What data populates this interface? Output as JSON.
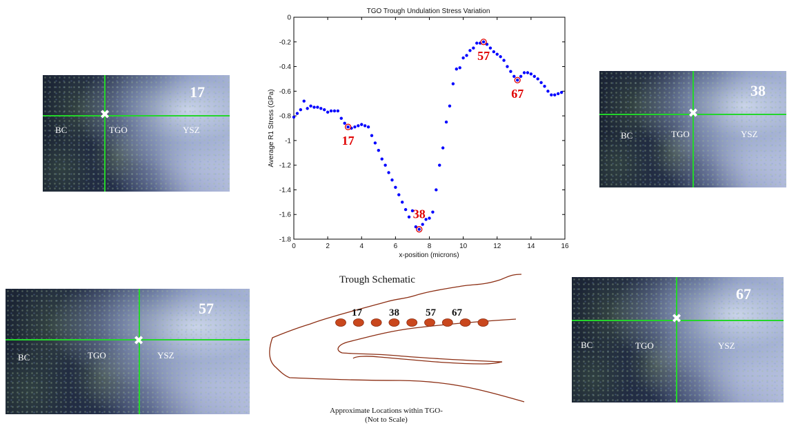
{
  "chart_data": {
    "type": "scatter",
    "title": "TGO Trough Undulation Stress Variation",
    "xlabel": "x-position (microns)",
    "ylabel": "Average R1 Stress (GPa)",
    "xlim": [
      0,
      16
    ],
    "ylim": [
      -1.8,
      0
    ],
    "xticks": [
      0,
      2,
      4,
      6,
      8,
      10,
      12,
      14,
      16
    ],
    "yticks": [
      0,
      -0.2,
      -0.4,
      -0.6,
      -0.8,
      -1,
      -1.2,
      -1.4,
      -1.6,
      -1.8
    ],
    "xtick_labels": [
      "0",
      "2",
      "4",
      "6",
      "8",
      "10",
      "12",
      "14",
      "16"
    ],
    "ytick_labels": [
      "0",
      "-0.2",
      "-0.4",
      "-0.6",
      "-0.8",
      "-1",
      "-1.2",
      "-1.4",
      "-1.6",
      "-1.8"
    ],
    "marker_color": "#0000ff",
    "highlight_color": "#e00000",
    "grid": false,
    "points": [
      [
        0.0,
        -0.81
      ],
      [
        0.2,
        -0.78
      ],
      [
        0.4,
        -0.75
      ],
      [
        0.6,
        -0.68
      ],
      [
        0.8,
        -0.74
      ],
      [
        1.0,
        -0.72
      ],
      [
        1.2,
        -0.73
      ],
      [
        1.4,
        -0.73
      ],
      [
        1.6,
        -0.74
      ],
      [
        1.8,
        -0.75
      ],
      [
        2.0,
        -0.77
      ],
      [
        2.2,
        -0.76
      ],
      [
        2.4,
        -0.76
      ],
      [
        2.6,
        -0.76
      ],
      [
        2.8,
        -0.82
      ],
      [
        3.0,
        -0.86
      ],
      [
        3.2,
        -0.89
      ],
      [
        3.4,
        -0.9
      ],
      [
        3.6,
        -0.89
      ],
      [
        3.8,
        -0.88
      ],
      [
        4.0,
        -0.87
      ],
      [
        4.2,
        -0.88
      ],
      [
        4.4,
        -0.89
      ],
      [
        4.6,
        -0.96
      ],
      [
        4.8,
        -1.02
      ],
      [
        5.0,
        -1.08
      ],
      [
        5.2,
        -1.15
      ],
      [
        5.4,
        -1.2
      ],
      [
        5.6,
        -1.26
      ],
      [
        5.8,
        -1.32
      ],
      [
        6.0,
        -1.38
      ],
      [
        6.2,
        -1.44
      ],
      [
        6.4,
        -1.5
      ],
      [
        6.6,
        -1.56
      ],
      [
        6.8,
        -1.62
      ],
      [
        7.0,
        -1.57
      ],
      [
        7.2,
        -1.7
      ],
      [
        7.4,
        -1.72
      ],
      [
        7.6,
        -1.68
      ],
      [
        7.8,
        -1.64
      ],
      [
        8.0,
        -1.63
      ],
      [
        8.2,
        -1.58
      ],
      [
        8.4,
        -1.4
      ],
      [
        8.6,
        -1.2
      ],
      [
        8.8,
        -1.06
      ],
      [
        9.0,
        -0.85
      ],
      [
        9.2,
        -0.72
      ],
      [
        9.4,
        -0.54
      ],
      [
        9.6,
        -0.42
      ],
      [
        9.8,
        -0.41
      ],
      [
        10.0,
        -0.33
      ],
      [
        10.2,
        -0.31
      ],
      [
        10.4,
        -0.27
      ],
      [
        10.6,
        -0.25
      ],
      [
        10.8,
        -0.21
      ],
      [
        11.0,
        -0.21
      ],
      [
        11.2,
        -0.2
      ],
      [
        11.4,
        -0.22
      ],
      [
        11.6,
        -0.25
      ],
      [
        11.8,
        -0.28
      ],
      [
        12.0,
        -0.3
      ],
      [
        12.2,
        -0.32
      ],
      [
        12.4,
        -0.35
      ],
      [
        12.6,
        -0.4
      ],
      [
        12.8,
        -0.44
      ],
      [
        13.0,
        -0.48
      ],
      [
        13.2,
        -0.51
      ],
      [
        13.4,
        -0.48
      ],
      [
        13.6,
        -0.45
      ],
      [
        13.8,
        -0.45
      ],
      [
        14.0,
        -0.46
      ],
      [
        14.2,
        -0.48
      ],
      [
        14.4,
        -0.5
      ],
      [
        14.6,
        -0.53
      ],
      [
        14.8,
        -0.56
      ],
      [
        15.0,
        -0.6
      ],
      [
        15.2,
        -0.63
      ],
      [
        15.4,
        -0.63
      ],
      [
        15.6,
        -0.62
      ],
      [
        15.8,
        -0.61
      ]
    ],
    "highlights": [
      {
        "label": "17",
        "x": 3.2,
        "y": -0.89,
        "label_side": "below"
      },
      {
        "label": "38",
        "x": 7.4,
        "y": -1.72,
        "label_side": "above"
      },
      {
        "label": "57",
        "x": 11.2,
        "y": -0.2,
        "label_side": "below"
      },
      {
        "label": "67",
        "x": 13.2,
        "y": -0.51,
        "label_side": "below"
      }
    ]
  },
  "micrographs": [
    {
      "id": "17",
      "number": "17",
      "labels": {
        "bc": "BC",
        "tgo": "TGO",
        "ysz": "YSZ"
      }
    },
    {
      "id": "38",
      "number": "38",
      "labels": {
        "bc": "BC",
        "tgo": "TGO",
        "ysz": "YSZ"
      }
    },
    {
      "id": "57",
      "number": "57",
      "labels": {
        "bc": "BC",
        "tgo": "TGO",
        "ysz": "YSZ"
      }
    },
    {
      "id": "67",
      "number": "67",
      "labels": {
        "bc": "BC",
        "tgo": "TGO",
        "ysz": "YSZ"
      }
    }
  ],
  "schematic": {
    "title": "Trough Schematic",
    "location_labels": [
      "17",
      "38",
      "57",
      "67"
    ],
    "caption_line1": "Approximate Locations within TGO-",
    "caption_line2": "(Not to Scale)",
    "outline_color": "#8b2d12",
    "ellipse_color": "#c9471d"
  }
}
